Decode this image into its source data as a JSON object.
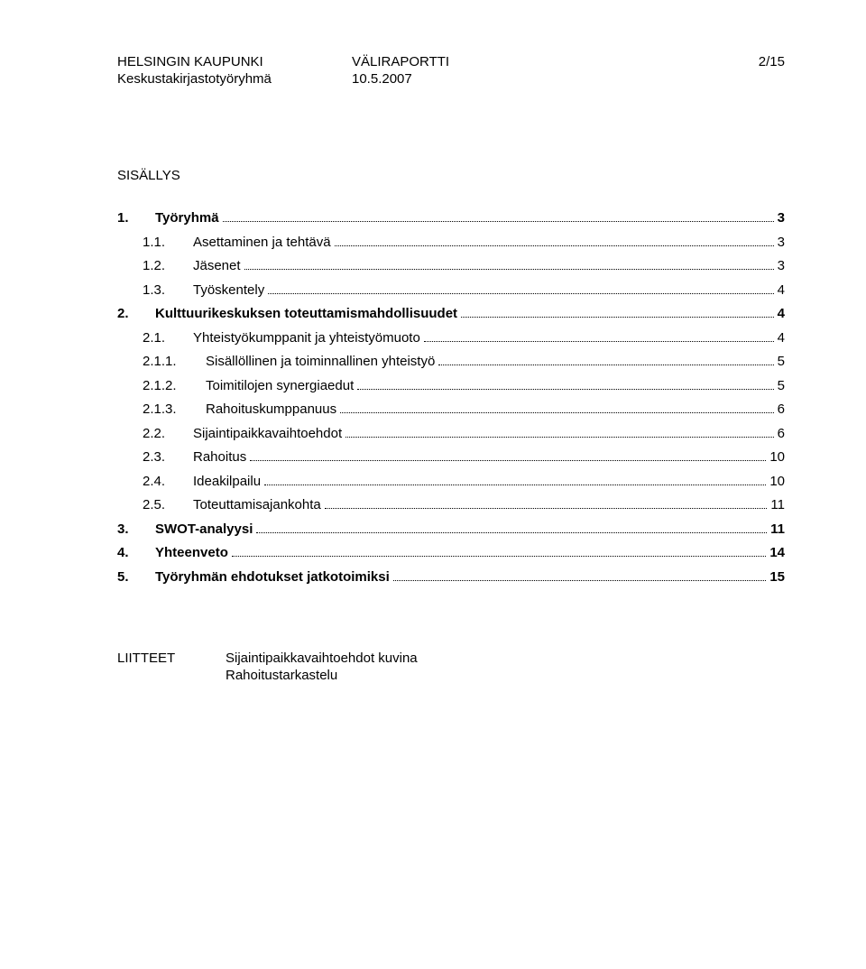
{
  "header": {
    "org": "HELSINGIN KAUPUNKI",
    "doc_type": "VÄLIRAPORTTI",
    "page": "2/15",
    "group": "Keskustakirjastotyöryhmä",
    "date": "10.5.2007"
  },
  "section_title": "SISÄLLYS",
  "toc": [
    {
      "num": "1.",
      "label": "Työryhmä",
      "page": "3",
      "bold": true,
      "indent": 0
    },
    {
      "num": "1.1.",
      "label": "Asettaminen ja tehtävä",
      "page": "3",
      "bold": false,
      "indent": 1
    },
    {
      "num": "1.2.",
      "label": "Jäsenet",
      "page": "3",
      "bold": false,
      "indent": 1
    },
    {
      "num": "1.3.",
      "label": "Työskentely",
      "page": "4",
      "bold": false,
      "indent": 1
    },
    {
      "num": "2.",
      "label": "Kulttuurikeskuksen toteuttamismahdollisuudet",
      "page": "4",
      "bold": true,
      "indent": 0
    },
    {
      "num": "2.1.",
      "label": "Yhteistyökumppanit ja yhteistyömuoto",
      "page": "4",
      "bold": false,
      "indent": 1
    },
    {
      "num": "2.1.1.",
      "label": "Sisällöllinen ja toiminnallinen yhteistyö",
      "page": "5",
      "bold": false,
      "indent": 2
    },
    {
      "num": "2.1.2.",
      "label": "Toimitilojen synergiaedut",
      "page": "5",
      "bold": false,
      "indent": 2
    },
    {
      "num": "2.1.3.",
      "label": "Rahoituskumppanuus",
      "page": "6",
      "bold": false,
      "indent": 2
    },
    {
      "num": "2.2.",
      "label": "Sijaintipaikkavaihtoehdot",
      "page": "6",
      "bold": false,
      "indent": 1
    },
    {
      "num": "2.3.",
      "label": "Rahoitus",
      "page": "10",
      "bold": false,
      "indent": 1
    },
    {
      "num": "2.4.",
      "label": "Ideakilpailu",
      "page": "10",
      "bold": false,
      "indent": 1
    },
    {
      "num": "2.5.",
      "label": "Toteuttamisajankohta",
      "page": "11",
      "bold": false,
      "indent": 1
    },
    {
      "num": "3.",
      "label": "SWOT-analyysi",
      "page": "11",
      "bold": true,
      "indent": 0
    },
    {
      "num": "4.",
      "label": "Yhteenveto",
      "page": "14",
      "bold": true,
      "indent": 0
    },
    {
      "num": "5.",
      "label": "Työryhmän ehdotukset jatkotoimiksi",
      "page": "15",
      "bold": true,
      "indent": 0
    }
  ],
  "appendix": {
    "label": "LIITTEET",
    "items": [
      "Sijaintipaikkavaihtoehdot kuvina",
      "Rahoitustarkastelu"
    ]
  }
}
